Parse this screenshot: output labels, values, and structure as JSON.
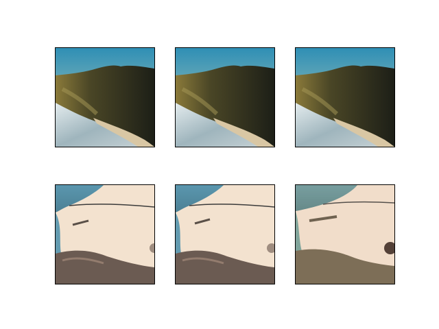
{
  "figure": {
    "rows": [
      {
        "kind": "photo",
        "panels": [
          {
            "name": "photo-panel-1",
            "variant": "original"
          },
          {
            "name": "photo-panel-2",
            "variant": "original"
          },
          {
            "name": "photo-panel-3",
            "variant": "original"
          }
        ]
      },
      {
        "kind": "stylized",
        "panels": [
          {
            "name": "stylized-panel-1",
            "variant": "stylized-a"
          },
          {
            "name": "stylized-panel-2",
            "variant": "stylized-a"
          },
          {
            "name": "stylized-panel-3",
            "variant": "stylized-b"
          }
        ]
      }
    ],
    "colors": {
      "sky_top": "#2f8fb5",
      "sky_bottom": "#d8d2a4",
      "mountain": "#2a2a1e",
      "mountain_lit": "#8a7a3a",
      "surf": "#c9d6da",
      "sand": "#d9c7a4",
      "stylized_sand": "#f3e2cf",
      "stylized_sea": "#3f89a8",
      "stylized_rock": "#6b5b52",
      "frame": "#000000"
    }
  }
}
